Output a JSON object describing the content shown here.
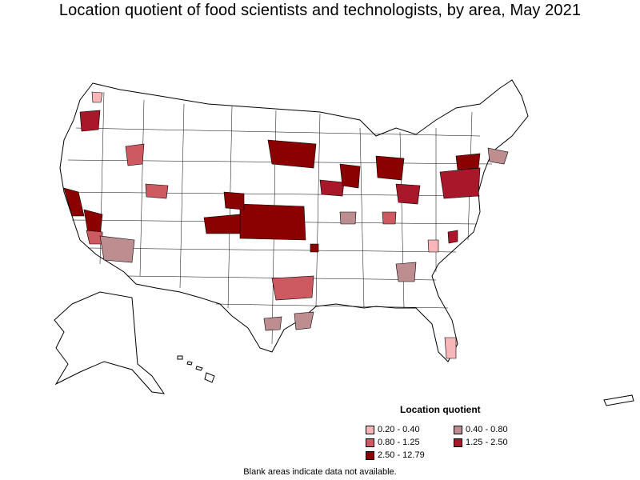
{
  "title": "Location quotient of food scientists and technologists, by area, May 2021",
  "legend": {
    "title": "Location quotient",
    "items": [
      {
        "label": "0.20 - 0.40",
        "color": "#f7b6b8"
      },
      {
        "label": "0.40 - 0.80",
        "color": "#bd8d8f"
      },
      {
        "label": "0.80 - 1.25",
        "color": "#cc5a60"
      },
      {
        "label": "1.25 - 2.50",
        "color": "#a8182a"
      },
      {
        "label": "2.50 - 12.79",
        "color": "#8b0000"
      }
    ]
  },
  "footnote": "Blank areas indicate data not available.",
  "colors": {
    "outline": "#000000",
    "background": "#ffffff"
  }
}
